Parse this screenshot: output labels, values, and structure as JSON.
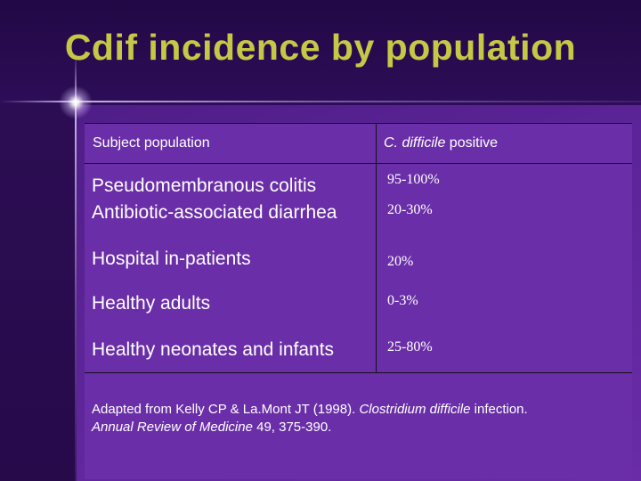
{
  "slide": {
    "title": "Cdif incidence by population"
  },
  "table": {
    "headers": {
      "population": "Subject population",
      "positive_italic": "C. difficile",
      "positive_rest": " positive"
    },
    "rows": [
      {
        "population": "Pseudomembranous colitis",
        "positive": "95-100%"
      },
      {
        "population": "Antibiotic-associated diarrhea",
        "positive": "20-30%"
      },
      {
        "population": "Hospital in-patients",
        "positive": "20%"
      },
      {
        "population": "Healthy adults",
        "positive": "0-3%"
      },
      {
        "population": "Healthy neonates and infants",
        "positive": "25-80%"
      }
    ]
  },
  "citation": {
    "prefix": "Adapted from Kelly CP & La.Mont JT (1998). ",
    "italic_1": "Clostridium difficile",
    "middle": " infection. ",
    "italic_2": "Annual Review of Medicine",
    "suffix": " 49, 375-390."
  },
  "colors": {
    "title": "#c5c844",
    "panel": "#6a2fa8",
    "background": "#3a1466"
  }
}
